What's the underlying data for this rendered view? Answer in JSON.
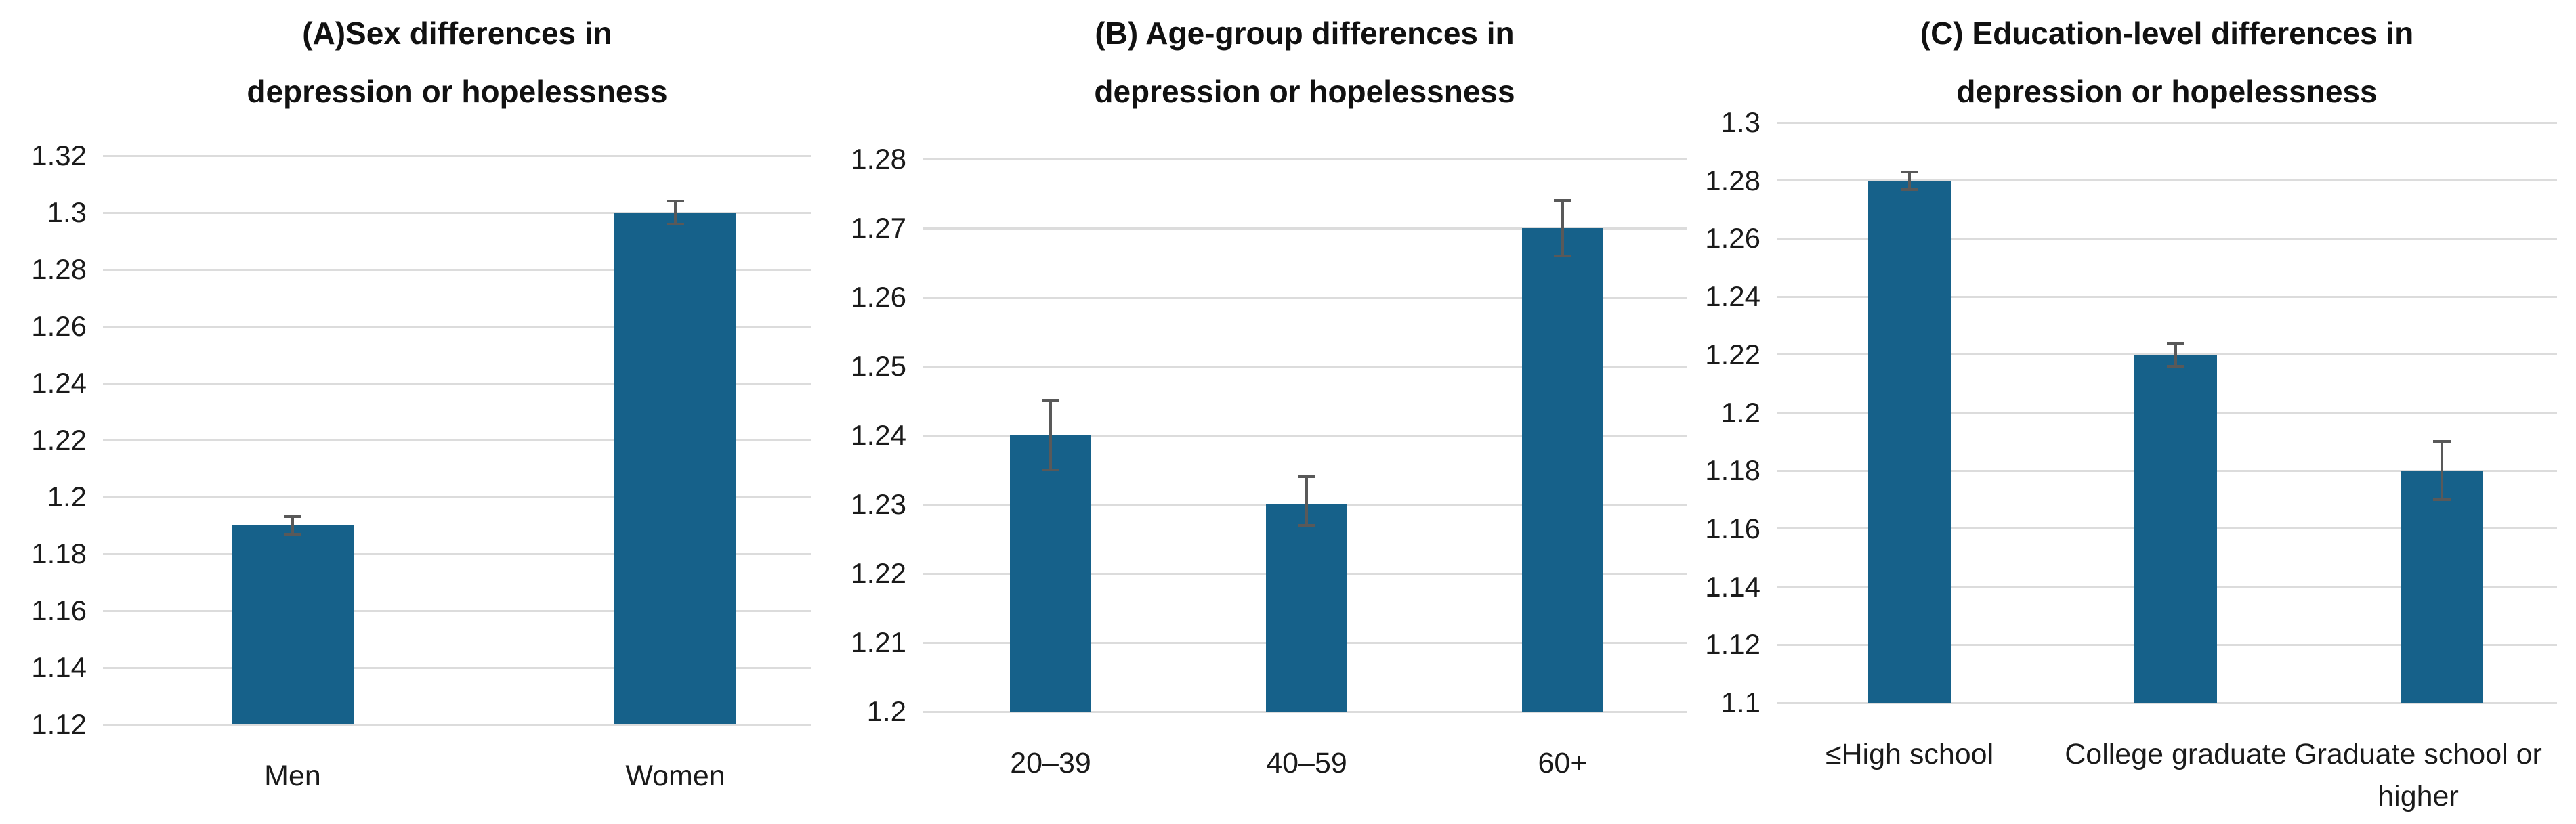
{
  "figure": {
    "description_note": "Three-panel bar chart figure with error bars",
    "background": "#ffffff"
  },
  "colors": {
    "bar": "#16618A",
    "grid": "#DCDCDC",
    "error_bar": "#595959",
    "text": "#1A1A1A",
    "title": "#111111"
  },
  "chart_data": [
    {
      "type": "bar",
      "panel": "A",
      "title": "(A)Sex differences in depression or hopelessness",
      "title_lines": [
        "(A)Sex differences in",
        "depression or hopelessness"
      ],
      "categories": [
        "Men",
        "Women"
      ],
      "values": [
        1.19,
        1.3
      ],
      "error_low": [
        1.187,
        1.296
      ],
      "error_high": [
        1.193,
        1.304
      ],
      "ylim": [
        1.12,
        1.32
      ],
      "ytick_values": [
        1.32,
        1.3,
        1.28,
        1.26,
        1.24,
        1.22,
        1.2,
        1.18,
        1.16,
        1.14,
        1.12
      ],
      "ytick_labels": [
        "1.32",
        "1.3",
        "1.28",
        "1.26",
        "1.24",
        "1.22",
        "1.2",
        "1.18",
        "1.16",
        "1.14",
        "1.12"
      ],
      "xlabel": "",
      "ylabel": "",
      "grid": true,
      "legend": null
    },
    {
      "type": "bar",
      "panel": "B",
      "title": "(B) Age-group differences in depression or hopelessness",
      "title_lines": [
        "(B) Age-group differences in",
        "depression or hopelessness"
      ],
      "categories": [
        "20–39",
        "40–59",
        "60+"
      ],
      "values": [
        1.24,
        1.23,
        1.27
      ],
      "error_low": [
        1.235,
        1.227,
        1.266
      ],
      "error_high": [
        1.245,
        1.234,
        1.274
      ],
      "ylim": [
        1.2,
        1.28
      ],
      "ytick_values": [
        1.28,
        1.27,
        1.26,
        1.25,
        1.24,
        1.23,
        1.22,
        1.21,
        1.2
      ],
      "ytick_labels": [
        "1.28",
        "1.27",
        "1.26",
        "1.25",
        "1.24",
        "1.23",
        "1.22",
        "1.21",
        "1.2"
      ],
      "xlabel": "",
      "ylabel": "",
      "grid": true,
      "legend": null
    },
    {
      "type": "bar",
      "panel": "C",
      "title": "(C) Education-level differences in depression or hopelessness",
      "title_lines": [
        "(C) Education-level differences in",
        "depression or hopelessness"
      ],
      "categories": [
        "≤High school",
        "College graduate",
        "Graduate school or higher"
      ],
      "values": [
        1.28,
        1.22,
        1.18
      ],
      "error_low": [
        1.277,
        1.216,
        1.17
      ],
      "error_high": [
        1.283,
        1.224,
        1.19
      ],
      "ylim": [
        1.1,
        1.3
      ],
      "ytick_values": [
        1.3,
        1.28,
        1.26,
        1.24,
        1.22,
        1.2,
        1.18,
        1.16,
        1.14,
        1.12,
        1.1
      ],
      "ytick_labels": [
        "1.3",
        "1.28",
        "1.26",
        "1.24",
        "1.22",
        "1.2",
        "1.18",
        "1.16",
        "1.14",
        "1.12",
        "1.1"
      ],
      "xlabel": "",
      "ylabel": "",
      "grid": true,
      "legend": null
    }
  ]
}
